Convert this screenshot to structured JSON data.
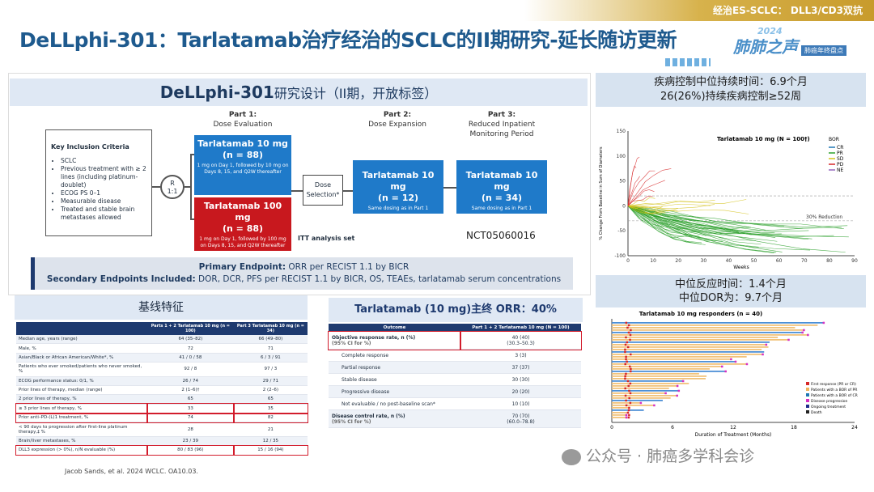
{
  "header": {
    "tag": "经治ES-SCLC： DLL3/CD3双抗",
    "title": "DeLLphi-301：Tarlatamab治疗经治的SCLC的II期研究-延长随访更新",
    "logo_year": "2024",
    "logo_name": "肺肺之声",
    "logo_sub": "肺癌年终盘点"
  },
  "design": {
    "title_bold": "DeLLphi-301",
    "title_rest": "研究设计（II期，开放标签）",
    "criteria_title": "Key Inclusion Criteria",
    "criteria": [
      "SCLC",
      "Previous treatment with ≥ 2 lines (including platinum-doublet)",
      "ECOG PS 0–1",
      "Measurable disease",
      "Treated and stable brain metastases allowed"
    ],
    "rand_label": "R",
    "rand_ratio": "1:1",
    "part1_title": "Part 1:",
    "part1_sub": "Dose Evaluation",
    "part2_title": "Part 2:",
    "part2_sub": "Dose Expansion",
    "part3_title": "Part 3:",
    "part3_sub": "Reduced Inpatient Monitoring Period",
    "arm10_name": "Tarlatamab 10 mg",
    "arm10_n": "(n = 88)",
    "arm10_desc": "1 mg on Day 1, followed by 10 mg on Days 8, 15, and Q2W thereafter",
    "arm100_name": "Tarlatamab 100 mg",
    "arm100_n": "(n = 88)",
    "arm100_desc": "1 mg on Day 1, followed by 100 mg on Days 8, 15, and Q2W thereafter",
    "dose_selection": "Dose Selection*",
    "p2_name": "Tarlatamab 10 mg",
    "p2_n": "(n = 12)",
    "p2_desc": "Same dosing as in Part 1",
    "p3_name": "Tarlatamab 10 mg",
    "p3_n": "(n = 34)",
    "p3_desc": "Same dosing as in Part 1",
    "itt": "ITT analysis set",
    "nct": "NCT05060016",
    "primary_label": "Primary Endpoint:",
    "primary": " ORR per RECIST 1.1 by BICR",
    "secondary_label": "Secondary Endpoints Included:",
    "secondary": " DOR, DCR, PFS per RECIST 1.1 by BICR, OS, TEAEs, tarlatamab serum concentrations"
  },
  "right": {
    "dc_line1": "疾病控制中位持续时间：6.9个月",
    "dc_line2": "26(26%)持续疾病控制≥52周",
    "resp_line1": "中位反应时间：1.4个月",
    "resp_line2": "中位DOR为：9.7个月"
  },
  "chart_data": [
    {
      "type": "line",
      "title": "Tarlatamab 10 mg (N = 100†)",
      "xlabel": "Weeks",
      "ylabel": "% Change From Baseline in Sum of Diameters",
      "xlim": [
        0,
        90
      ],
      "ylim": [
        -100,
        150
      ],
      "xticks": [
        0,
        10,
        20,
        30,
        40,
        50,
        60,
        70,
        80,
        90
      ],
      "yticks": [
        150,
        100,
        50,
        0,
        -50,
        -100
      ],
      "legend_title": "BOR",
      "legend": [
        "CR",
        "PR",
        "SD",
        "PD",
        "NE"
      ],
      "colors": [
        "#1f77b4",
        "#2ca02c",
        "#d4c21b",
        "#d62728",
        "#9467bd"
      ],
      "annotation": "30% Reduction"
    },
    {
      "type": "bar",
      "title": "Tarlatamab 10 mg responders (n = 40)",
      "xlabel": "Duration of Treatment (Months)",
      "xlim": [
        0,
        24
      ],
      "xticks": [
        0,
        6,
        12,
        18,
        24
      ],
      "legend": [
        "First response (PR or CR)",
        "Patients with a BOR of PR",
        "Patients with a BOR of CR",
        "Disease progression",
        "Ongoing treatment",
        "Death"
      ]
    }
  ],
  "baseline": {
    "title": "基线特征",
    "headers": [
      "",
      "Parts 1 + 2 Tarlatamab 10 mg (n = 100)",
      "Part 3 Tarlatamab 10 mg (n = 34)"
    ],
    "rows": [
      [
        "Median age, years (range)",
        "64 (35–82)",
        "66 (49–80)"
      ],
      [
        "Male, %",
        "72",
        "71"
      ],
      [
        "Asian/Black or African American/White*, %",
        "41 / 0 / 58",
        "6 / 3 / 91"
      ],
      [
        "Patients who ever smoked/patients who never smoked, %",
        "92 / 8",
        "97 / 3"
      ],
      [
        "ECOG performance status: 0/1, %",
        "26 / 74",
        "29 / 71"
      ],
      [
        "Prior lines of therapy, median (range)",
        "2 (1–6)†",
        "2 (2–6)"
      ],
      [
        "2 prior lines of therapy, %",
        "65",
        "65"
      ],
      [
        "≥ 3 prior lines of therapy, %",
        "33",
        "35"
      ],
      [
        "Prior anti–PD-(L)1 treatment, %",
        "74",
        "82"
      ],
      [
        "< 90 days to progression after first-line platinum therapy,‡ %",
        "28",
        "21"
      ],
      [
        "Brain/liver metastases, %",
        "23 / 39",
        "12 / 35"
      ],
      [
        "DLL3 expression (> 0%), n/N evaluable (%)",
        "80 / 83 (96)",
        "15 / 16 (94)"
      ]
    ]
  },
  "orr": {
    "title": "Tarlatamab (10 mg)主终 ORR：40%",
    "headers": [
      "Outcome",
      "Part 1 + 2 Tarlatamab 10 mg (N = 100)"
    ],
    "rows": [
      [
        "Objective response rate, n (%)",
        "(95% CI for %)",
        "40 (40)",
        "(30.3–50.3)"
      ],
      [
        "Complete response",
        "",
        "3 (3)",
        ""
      ],
      [
        "Partial response",
        "",
        "37 (37)",
        ""
      ],
      [
        "Stable disease",
        "",
        "30 (30)",
        ""
      ],
      [
        "Progressive disease",
        "",
        "20 (20)",
        ""
      ],
      [
        "Not evaluable / no post-baseline scan*",
        "",
        "10 (10)",
        ""
      ],
      [
        "Disease control rate, n (%)",
        "(95% CI for %)",
        "70 (70)",
        "(60.0–78.8)"
      ]
    ]
  },
  "footnote": "Jacob Sands, et al. 2024 WCLC. OA10.03.",
  "watermark": "公众号 · 肺癌多学科会诊"
}
